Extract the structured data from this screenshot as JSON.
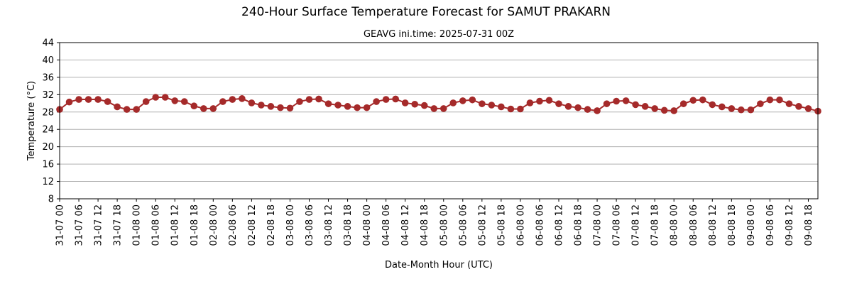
{
  "chart_data": {
    "type": "line",
    "title": "240-Hour Surface Temperature Forecast for SAMUT PRAKARN",
    "subtitle": "GEAVG ini.time: 2025-07-31 00Z",
    "xlabel": "Date-Month Hour (UTC)",
    "ylabel": "Temperature (°C)",
    "ylim": [
      8,
      44
    ],
    "yticks": [
      8,
      12,
      16,
      20,
      24,
      28,
      32,
      36,
      40,
      44
    ],
    "grid": "horizontal",
    "x_step_hours": 3,
    "xtick_labels": [
      "31-07 00",
      "31-07 06",
      "31-07 12",
      "31-07 18",
      "01-08 00",
      "01-08 06",
      "01-08 12",
      "01-08 18",
      "02-08 00",
      "02-08 06",
      "02-08 12",
      "02-08 18",
      "03-08 00",
      "03-08 06",
      "03-08 12",
      "03-08 18",
      "04-08 00",
      "04-08 06",
      "04-08 12",
      "04-08 18",
      "05-08 00",
      "05-08 06",
      "05-08 12",
      "05-08 18",
      "06-08 00",
      "06-08 06",
      "06-08 12",
      "06-08 18",
      "07-08 00",
      "07-08 06",
      "07-08 12",
      "07-08 18",
      "08-08 00",
      "08-08 06",
      "08-08 12",
      "08-08 18",
      "09-08 00",
      "09-08 06",
      "09-08 12",
      "09-08 18"
    ],
    "series": [
      {
        "color": "#a52a2a",
        "values": [
          28.6,
          30.3,
          30.9,
          30.9,
          30.9,
          30.4,
          29.2,
          28.6,
          28.6,
          30.4,
          31.4,
          31.4,
          30.6,
          30.4,
          29.4,
          28.8,
          28.8,
          30.4,
          30.9,
          31.1,
          30.1,
          29.6,
          29.3,
          29.0,
          28.9,
          30.4,
          30.9,
          31.0,
          29.9,
          29.6,
          29.3,
          29.0,
          29.0,
          30.4,
          30.9,
          31.0,
          30.1,
          29.8,
          29.5,
          28.8,
          28.8,
          30.1,
          30.6,
          30.8,
          29.9,
          29.6,
          29.2,
          28.7,
          28.7,
          30.1,
          30.5,
          30.7,
          29.9,
          29.3,
          29.0,
          28.6,
          28.3,
          29.9,
          30.5,
          30.6,
          29.7,
          29.3,
          28.8,
          28.4,
          28.3,
          29.9,
          30.7,
          30.8,
          29.7,
          29.2,
          28.8,
          28.5,
          28.5,
          29.9,
          30.8,
          30.8,
          29.9,
          29.3,
          28.8,
          28.2
        ]
      }
    ]
  }
}
